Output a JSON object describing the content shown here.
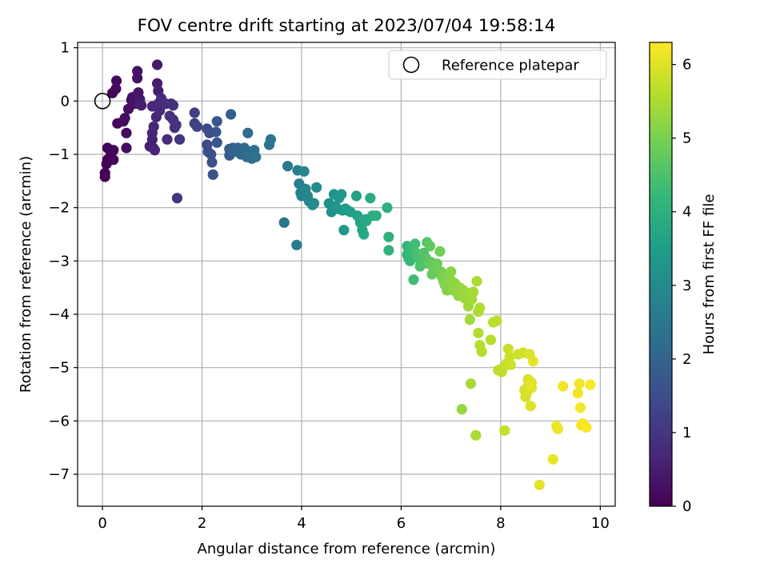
{
  "chart_data": {
    "type": "scatter",
    "title": "FOV centre drift starting at 2023/07/04 19:58:14",
    "xlabel": "Angular distance from reference (arcmin)",
    "ylabel": "Rotation from reference (arcmin)",
    "xlim": [
      -0.5,
      10.3
    ],
    "ylim": [
      -7.6,
      1.1
    ],
    "xticks": [
      0,
      2,
      4,
      6,
      8,
      10
    ],
    "xtick_labels": [
      "0",
      "2",
      "4",
      "6",
      "8",
      "10"
    ],
    "yticks": [
      1,
      0,
      -1,
      -2,
      -3,
      -4,
      -5,
      -6,
      -7
    ],
    "ytick_labels": [
      "1",
      "0",
      "−1",
      "−2",
      "−3",
      "−4",
      "−5",
      "−6",
      "−7"
    ],
    "grid": true,
    "legend": {
      "label": "Reference platepar",
      "placement": "top-right",
      "marker": "open-circle"
    },
    "reference_point": {
      "x": 0,
      "y": 0
    },
    "colorbar": {
      "label": "Hours from first FF file",
      "colormap": "viridis",
      "range": [
        0,
        6.3
      ],
      "ticks": [
        0,
        1,
        2,
        3,
        4,
        5,
        6
      ],
      "tick_labels": [
        "0",
        "1",
        "2",
        "3",
        "4",
        "5",
        "6"
      ]
    },
    "colormap_stops": [
      "#440154",
      "#482878",
      "#3e4989",
      "#31688e",
      "#26828e",
      "#1f9e89",
      "#35b779",
      "#6ece58",
      "#b5de2b",
      "#fde725"
    ],
    "series": [
      {
        "points": [
          [
            0.05,
            -1.42,
            0.02
          ],
          [
            0.05,
            -1.35,
            0.03
          ],
          [
            0.08,
            -1.18,
            0.05
          ],
          [
            0.1,
            -1.1,
            0.06
          ],
          [
            0.1,
            -0.88,
            0.07
          ],
          [
            0.17,
            -0.97,
            0.08
          ],
          [
            0.22,
            -1.1,
            0.09
          ],
          [
            0.22,
            -0.92,
            0.1
          ],
          [
            0.2,
            0.15,
            0.12
          ],
          [
            0.27,
            0.23,
            0.13
          ],
          [
            0.28,
            0.38,
            0.14
          ],
          [
            0.3,
            -0.42,
            0.15
          ],
          [
            0.42,
            -0.38,
            0.17
          ],
          [
            0.45,
            -0.32,
            0.18
          ],
          [
            0.48,
            -0.6,
            0.2
          ],
          [
            0.48,
            -0.88,
            0.22
          ],
          [
            0.52,
            -0.15,
            0.24
          ],
          [
            0.58,
            0.02,
            0.26
          ],
          [
            0.6,
            0.07,
            0.28
          ],
          [
            0.65,
            -0.05,
            0.3
          ],
          [
            0.7,
            0.43,
            0.32
          ],
          [
            0.7,
            0.56,
            0.34
          ],
          [
            0.72,
            0.16,
            0.37
          ],
          [
            0.75,
            0.03,
            0.4
          ],
          [
            0.78,
            -0.08,
            0.42
          ],
          [
            1.1,
            0.68,
            0.45
          ],
          [
            1.1,
            0.33,
            0.48
          ],
          [
            1.12,
            0.19,
            0.5
          ],
          [
            0.75,
            -0.05,
            0.53
          ],
          [
            0.95,
            -0.85,
            0.56
          ],
          [
            1.0,
            -0.72,
            0.58
          ],
          [
            1.02,
            -0.88,
            0.6
          ],
          [
            1.05,
            -0.92,
            0.62
          ],
          [
            1.0,
            -0.6,
            0.64
          ],
          [
            1.03,
            -0.48,
            0.66
          ],
          [
            1.08,
            -0.3,
            0.68
          ],
          [
            1.0,
            -0.1,
            0.7
          ],
          [
            1.12,
            -0.05,
            0.72
          ],
          [
            1.18,
            0.05,
            0.74
          ],
          [
            1.15,
            -0.18,
            0.76
          ],
          [
            1.2,
            -0.02,
            0.78
          ],
          [
            1.28,
            -0.05,
            0.8
          ],
          [
            1.3,
            -0.72,
            0.82
          ],
          [
            1.35,
            -0.28,
            0.84
          ],
          [
            1.38,
            -0.05,
            0.86
          ],
          [
            1.42,
            -0.08,
            0.88
          ],
          [
            1.42,
            -0.35,
            0.9
          ],
          [
            1.45,
            -0.5,
            0.92
          ],
          [
            1.48,
            -0.45,
            0.94
          ],
          [
            1.5,
            -1.82,
            0.98
          ],
          [
            1.55,
            -0.72,
            1.02
          ],
          [
            1.85,
            -0.22,
            1.2
          ],
          [
            1.85,
            -0.42,
            1.25
          ],
          [
            1.9,
            -0.48,
            1.3
          ],
          [
            2.1,
            -0.52,
            1.38
          ],
          [
            2.1,
            -0.82,
            1.42
          ],
          [
            2.12,
            -0.95,
            1.46
          ],
          [
            2.15,
            -0.6,
            1.5
          ],
          [
            2.18,
            -1.0,
            1.54
          ],
          [
            2.2,
            -1.15,
            1.58
          ],
          [
            2.22,
            -1.38,
            1.62
          ],
          [
            2.28,
            -0.58,
            1.66
          ],
          [
            2.3,
            -0.38,
            1.7
          ],
          [
            2.3,
            -0.78,
            1.74
          ],
          [
            2.55,
            -0.9,
            1.8
          ],
          [
            2.55,
            -1.02,
            1.84
          ],
          [
            2.58,
            -0.25,
            1.88
          ],
          [
            2.62,
            -0.88,
            1.92
          ],
          [
            2.65,
            -0.95,
            1.96
          ],
          [
            2.68,
            -0.92,
            2.0
          ],
          [
            2.72,
            -0.88,
            2.04
          ],
          [
            2.78,
            -1.0,
            2.08
          ],
          [
            2.85,
            -0.88,
            2.12
          ],
          [
            2.9,
            -1.05,
            2.16
          ],
          [
            2.92,
            -0.6,
            2.2
          ],
          [
            2.95,
            -0.95,
            2.24
          ],
          [
            3.0,
            -1.08,
            2.28
          ],
          [
            3.05,
            -0.92,
            2.32
          ],
          [
            3.08,
            -1.05,
            2.36
          ],
          [
            3.35,
            -0.82,
            2.42
          ],
          [
            3.38,
            -0.72,
            2.46
          ],
          [
            3.65,
            -2.28,
            2.5
          ],
          [
            3.72,
            -1.22,
            2.55
          ],
          [
            3.9,
            -2.7,
            2.6
          ],
          [
            3.92,
            -1.3,
            2.65
          ],
          [
            3.95,
            -1.55,
            2.7
          ],
          [
            3.98,
            -1.72,
            2.75
          ],
          [
            4.0,
            -1.78,
            2.8
          ],
          [
            4.05,
            -1.32,
            2.85
          ],
          [
            4.08,
            -1.65,
            2.88
          ],
          [
            4.12,
            -1.78,
            2.92
          ],
          [
            4.15,
            -1.88,
            2.96
          ],
          [
            4.22,
            -1.95,
            3.0
          ],
          [
            4.25,
            -1.92,
            3.04
          ],
          [
            4.3,
            -1.62,
            3.08
          ],
          [
            4.55,
            -1.92,
            3.12
          ],
          [
            4.6,
            -2.08,
            3.15
          ],
          [
            4.65,
            -1.75,
            3.18
          ],
          [
            4.68,
            -1.98,
            3.22
          ],
          [
            4.72,
            -2.02,
            3.26
          ],
          [
            4.75,
            -1.82,
            3.3
          ],
          [
            4.8,
            -1.75,
            3.34
          ],
          [
            4.82,
            -2.05,
            3.38
          ],
          [
            4.85,
            -2.42,
            3.42
          ],
          [
            4.88,
            -2.02,
            3.46
          ],
          [
            4.92,
            -2.05,
            3.5
          ],
          [
            4.98,
            -2.08,
            3.54
          ],
          [
            5.1,
            -1.78,
            3.58
          ],
          [
            5.12,
            -2.15,
            3.62
          ],
          [
            5.18,
            -2.28,
            3.66
          ],
          [
            5.22,
            -2.42,
            3.7
          ],
          [
            5.25,
            -2.5,
            3.74
          ],
          [
            5.28,
            -2.22,
            3.78
          ],
          [
            5.3,
            -2.25,
            3.82
          ],
          [
            5.38,
            -1.82,
            3.86
          ],
          [
            5.42,
            -2.15,
            3.9
          ],
          [
            5.5,
            -2.15,
            3.94
          ],
          [
            5.72,
            -2.0,
            3.98
          ],
          [
            5.75,
            -2.55,
            4.02
          ],
          [
            5.75,
            -2.8,
            4.06
          ],
          [
            6.12,
            -2.72,
            4.12
          ],
          [
            6.12,
            -2.88,
            4.16
          ],
          [
            6.15,
            -2.95,
            4.2
          ],
          [
            6.18,
            -3.0,
            4.24
          ],
          [
            6.2,
            -2.75,
            4.28
          ],
          [
            6.25,
            -3.35,
            4.32
          ],
          [
            6.28,
            -2.68,
            4.36
          ],
          [
            6.3,
            -2.85,
            4.4
          ],
          [
            6.35,
            -2.95,
            4.44
          ],
          [
            6.38,
            -3.1,
            4.48
          ],
          [
            6.42,
            -3.0,
            4.52
          ],
          [
            6.45,
            -2.85,
            4.56
          ],
          [
            6.5,
            -2.95,
            4.6
          ],
          [
            6.52,
            -2.65,
            4.64
          ],
          [
            6.55,
            -3.05,
            4.68
          ],
          [
            6.58,
            -2.72,
            4.72
          ],
          [
            6.6,
            -3.02,
            4.76
          ],
          [
            6.62,
            -3.25,
            4.8
          ],
          [
            6.65,
            -3.12,
            4.84
          ],
          [
            6.72,
            -3.05,
            4.88
          ],
          [
            6.78,
            -2.82,
            4.92
          ],
          [
            6.8,
            -3.2,
            4.96
          ],
          [
            6.82,
            -3.3,
            5.0
          ],
          [
            6.85,
            -3.38,
            5.04
          ],
          [
            6.88,
            -3.45,
            5.06
          ],
          [
            6.9,
            -3.3,
            5.08
          ],
          [
            6.92,
            -3.55,
            5.1
          ],
          [
            6.95,
            -3.42,
            5.12
          ],
          [
            6.98,
            -3.5,
            5.14
          ],
          [
            7.0,
            -3.2,
            5.16
          ],
          [
            7.02,
            -3.38,
            5.18
          ],
          [
            7.05,
            -3.55,
            5.2
          ],
          [
            7.08,
            -3.42,
            5.22
          ],
          [
            7.12,
            -3.58,
            5.24
          ],
          [
            7.15,
            -3.65,
            5.26
          ],
          [
            7.18,
            -3.5,
            5.28
          ],
          [
            7.22,
            -5.78,
            5.3
          ],
          [
            7.25,
            -3.55,
            5.32
          ],
          [
            7.28,
            -3.7,
            5.34
          ],
          [
            7.32,
            -3.6,
            5.36
          ],
          [
            7.35,
            -3.85,
            5.38
          ],
          [
            7.38,
            -4.1,
            5.4
          ],
          [
            7.42,
            -3.72,
            5.42
          ],
          [
            7.45,
            -3.58,
            5.44
          ],
          [
            7.4,
            -5.3,
            5.46
          ],
          [
            7.5,
            -6.27,
            5.48
          ],
          [
            7.52,
            -3.38,
            5.5
          ],
          [
            7.55,
            -3.95,
            5.52
          ],
          [
            7.58,
            -3.88,
            5.54
          ],
          [
            7.55,
            -4.35,
            5.56
          ],
          [
            7.58,
            -4.58,
            5.58
          ],
          [
            7.62,
            -4.7,
            5.6
          ],
          [
            7.8,
            -4.48,
            5.62
          ],
          [
            7.85,
            -4.15,
            5.64
          ],
          [
            7.92,
            -4.12,
            5.66
          ],
          [
            7.95,
            -5.05,
            5.68
          ],
          [
            8.02,
            -5.08,
            5.7
          ],
          [
            8.05,
            -5.0,
            5.72
          ],
          [
            8.08,
            -6.18,
            5.74
          ],
          [
            8.12,
            -4.92,
            5.76
          ],
          [
            8.15,
            -4.65,
            5.78
          ],
          [
            8.18,
            -4.8,
            5.8
          ],
          [
            8.2,
            -4.95,
            5.82
          ],
          [
            8.35,
            -4.75,
            5.84
          ],
          [
            8.45,
            -4.72,
            5.86
          ],
          [
            8.48,
            -5.42,
            5.88
          ],
          [
            8.5,
            -5.55,
            5.9
          ],
          [
            8.52,
            -5.48,
            5.92
          ],
          [
            8.55,
            -5.35,
            5.94
          ],
          [
            8.55,
            -5.22,
            5.96
          ],
          [
            8.58,
            -4.75,
            5.98
          ],
          [
            8.6,
            -5.72,
            6.0
          ],
          [
            8.62,
            -5.28,
            6.02
          ],
          [
            8.62,
            -5.38,
            6.03
          ],
          [
            8.65,
            -4.88,
            6.04
          ],
          [
            8.78,
            -7.2,
            6.06
          ],
          [
            9.05,
            -6.72,
            6.1
          ],
          [
            9.12,
            -6.1,
            6.12
          ],
          [
            9.15,
            -6.15,
            6.14
          ],
          [
            9.25,
            -5.35,
            6.16
          ],
          [
            9.55,
            -5.48,
            6.18
          ],
          [
            9.58,
            -5.3,
            6.2
          ],
          [
            9.6,
            -5.75,
            6.22
          ],
          [
            9.62,
            -6.08,
            6.24
          ],
          [
            9.65,
            -6.05,
            6.25
          ],
          [
            9.72,
            -6.12,
            6.26
          ],
          [
            9.8,
            -5.32,
            6.27
          ]
        ]
      }
    ]
  }
}
